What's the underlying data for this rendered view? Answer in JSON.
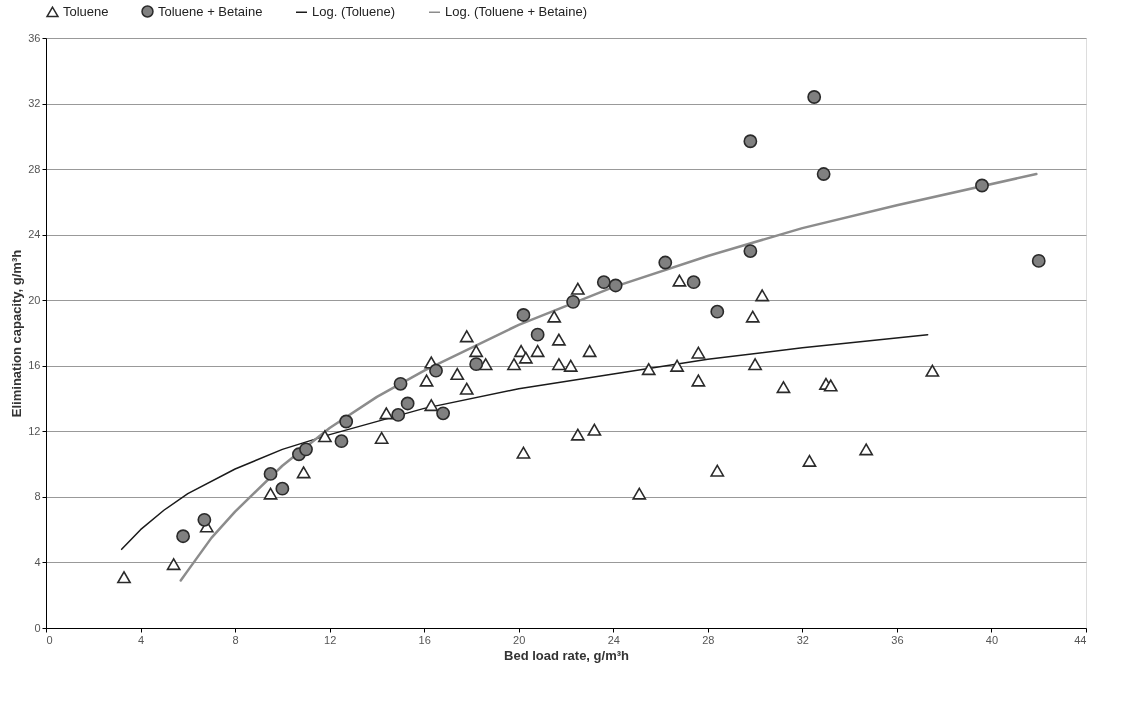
{
  "chart_data": {
    "type": "scatter",
    "xlabel": "Bed load rate, g/m³h",
    "ylabel": "Elimination capacity, g/m³h",
    "xlim": [
      0,
      44
    ],
    "xticks": [
      0,
      4,
      8,
      12,
      16,
      20,
      24,
      28,
      32,
      36,
      40,
      44
    ],
    "ylim": [
      0,
      36
    ],
    "yticks": [
      0,
      4,
      8,
      12,
      16,
      20,
      24,
      28,
      32,
      36
    ],
    "grid": "y",
    "legend": "top",
    "series": [
      {
        "name": "Toluene",
        "marker": "triangle",
        "color": "#ffffff",
        "x": [
          3.3,
          5.4,
          6.8,
          9.5,
          10.9,
          11.8,
          14.2,
          14.4,
          16.1,
          16.3,
          16.3,
          17.4,
          17.8,
          17.8,
          18.2,
          18.6,
          19.8,
          20.1,
          20.3,
          20.8,
          20.2,
          21.5,
          21.7,
          21.7,
          22.2,
          22.5,
          22.5,
          23.0,
          23.2,
          25.1,
          25.5,
          26.7,
          26.8,
          27.6,
          27.6,
          28.4,
          29.9,
          30.0,
          30.3,
          31.2,
          32.3,
          33.0,
          33.2,
          34.7,
          37.5
        ],
        "values": [
          3.1,
          3.9,
          6.2,
          8.2,
          9.5,
          11.7,
          11.6,
          13.1,
          15.1,
          16.2,
          13.6,
          15.5,
          17.8,
          14.6,
          16.9,
          16.1,
          16.1,
          16.9,
          16.5,
          16.9,
          10.7,
          19.0,
          17.6,
          16.1,
          16.0,
          20.7,
          11.8,
          16.9,
          12.1,
          8.2,
          15.8,
          16.0,
          21.2,
          16.8,
          15.1,
          9.6,
          19.0,
          16.1,
          20.3,
          14.7,
          10.2,
          14.9,
          14.8,
          10.9,
          15.7
        ]
      },
      {
        "name": "Toluene + Betaine",
        "marker": "circle",
        "color": "#808080",
        "x": [
          5.8,
          6.7,
          9.5,
          10.0,
          10.7,
          11.0,
          12.5,
          12.7,
          14.9,
          15.3,
          15.0,
          16.5,
          16.8,
          18.2,
          20.2,
          20.8,
          22.3,
          23.6,
          24.1,
          26.2,
          27.4,
          28.4,
          29.8,
          29.8,
          32.5,
          32.9,
          39.6,
          42.0
        ],
        "values": [
          5.6,
          6.6,
          9.4,
          8.5,
          10.6,
          10.9,
          11.4,
          12.6,
          13.0,
          13.7,
          14.9,
          15.7,
          13.1,
          16.1,
          19.1,
          17.9,
          19.9,
          21.1,
          20.9,
          22.3,
          21.1,
          19.3,
          23.0,
          29.7,
          32.4,
          27.7,
          27.0,
          22.4
        ]
      },
      {
        "name": "Log. (Toluene)",
        "type": "line",
        "marker": "none",
        "line_style": "solid",
        "color": "#1a1a1a",
        "x": [
          3.2,
          4,
          5,
          6,
          8,
          10,
          12,
          16,
          20,
          24,
          28,
          32,
          37.3
        ],
        "values": [
          4.8,
          6.0,
          7.2,
          8.2,
          9.7,
          10.9,
          11.8,
          13.4,
          14.6,
          15.5,
          16.4,
          17.1,
          17.9
        ]
      },
      {
        "name": "Log. (Toluene + Betaine)",
        "type": "line",
        "marker": "none",
        "line_style": "solid",
        "color": "#8c8c8c",
        "x": [
          5.7,
          6,
          7,
          8,
          10,
          12,
          14,
          16,
          20,
          24,
          28,
          32,
          36,
          41.9
        ],
        "values": [
          2.9,
          3.5,
          5.5,
          7.1,
          9.9,
          12.2,
          14.1,
          15.7,
          18.5,
          20.8,
          22.7,
          24.4,
          25.8,
          27.7
        ]
      }
    ]
  }
}
